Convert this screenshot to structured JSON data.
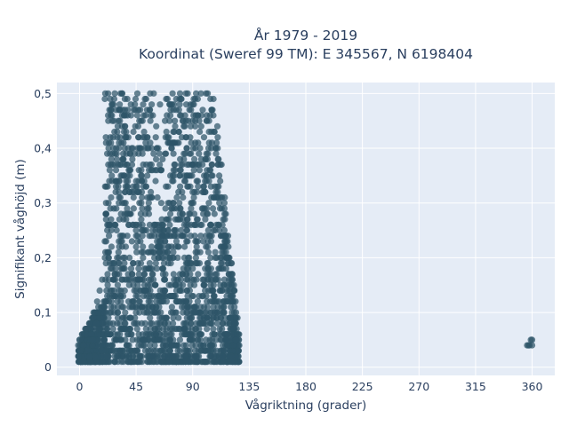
{
  "chart_data": {
    "type": "scatter",
    "title_line1": "År 1979 - 2019",
    "title_line2": "Koordinat (Sweref 99 TM): E 345567, N 6198404",
    "xlabel": "Vågriktning (grader)",
    "ylabel": "Signifikant våghöjd (m)",
    "xlim": [
      -18,
      378
    ],
    "ylim": [
      -0.015,
      0.52
    ],
    "x_ticks": [
      0,
      45,
      90,
      135,
      180,
      225,
      270,
      315,
      360
    ],
    "x_tick_labels": [
      "0",
      "45",
      "90",
      "135",
      "180",
      "225",
      "270",
      "315",
      "360"
    ],
    "y_ticks": [
      0,
      0.1,
      0.2,
      0.3,
      0.4,
      0.5
    ],
    "y_tick_labels": [
      "0",
      "0,1",
      "0,2",
      "0,3",
      "0,4",
      "0,5"
    ],
    "grid": true,
    "legend": "none",
    "marker_color": "#2e5468",
    "background_color": "#e5ecf6",
    "series": [
      {
        "values": [
          [
            -1,
            0.04
          ],
          [
            0,
            0.05
          ],
          [
            1,
            0.03
          ],
          [
            2,
            0.06
          ],
          [
            3,
            0.04
          ],
          [
            5,
            0.07
          ],
          [
            6,
            0.03
          ],
          [
            8,
            0.08
          ],
          [
            10,
            0.05
          ],
          [
            11,
            0.09
          ],
          [
            12,
            0.1
          ],
          [
            14,
            0.12
          ],
          [
            15,
            0.07
          ],
          [
            16,
            0.14
          ],
          [
            18,
            0.16
          ],
          [
            20,
            0.11
          ],
          [
            21,
            0.19
          ],
          [
            22,
            0.25
          ],
          [
            23,
            0.3
          ],
          [
            24,
            0.36
          ],
          [
            25,
            0.41
          ],
          [
            26,
            0.45
          ],
          [
            27,
            0.48
          ],
          [
            28,
            0.5
          ],
          [
            29,
            0.33
          ],
          [
            30,
            0.43
          ],
          [
            31,
            0.21
          ],
          [
            32,
            0.47
          ],
          [
            33,
            0.28
          ],
          [
            34,
            0.5
          ],
          [
            35,
            0.38
          ],
          [
            36,
            0.2
          ],
          [
            37,
            0.42
          ],
          [
            38,
            0.49
          ],
          [
            39,
            0.26
          ],
          [
            40,
            0.35
          ],
          [
            41,
            0.46
          ],
          [
            42,
            0.17
          ],
          [
            43,
            0.31
          ],
          [
            44,
            0.48
          ],
          [
            45,
            0.22
          ],
          [
            46,
            0.5
          ],
          [
            47,
            0.39
          ],
          [
            48,
            0.14
          ],
          [
            49,
            0.45
          ],
          [
            50,
            0.24
          ],
          [
            51,
            0.33
          ],
          [
            52,
            0.49
          ],
          [
            53,
            0.18
          ],
          [
            54,
            0.42
          ],
          [
            55,
            0.29
          ],
          [
            56,
            0.47
          ],
          [
            57,
            0.1
          ],
          [
            58,
            0.36
          ],
          [
            59,
            0.5
          ],
          [
            60,
            0.26
          ],
          [
            61,
            0.44
          ],
          [
            62,
            0.31
          ],
          [
            63,
            0.21
          ],
          [
            64,
            0.48
          ],
          [
            65,
            0.3
          ],
          [
            66,
            0.38
          ],
          [
            67,
            0.25
          ],
          [
            68,
            0.45
          ],
          [
            69,
            0.27
          ],
          [
            70,
            0.49
          ],
          [
            71,
            0.22
          ],
          [
            72,
            0.41
          ],
          [
            73,
            0.29
          ],
          [
            74,
            0.5
          ],
          [
            75,
            0.24
          ],
          [
            76,
            0.36
          ],
          [
            77,
            0.47
          ],
          [
            78,
            0.2
          ],
          [
            79,
            0.43
          ],
          [
            80,
            0.33
          ],
          [
            81,
            0.49
          ],
          [
            82,
            0.28
          ],
          [
            83,
            0.38
          ],
          [
            84,
            0.46
          ],
          [
            85,
            0.23
          ],
          [
            86,
            0.5
          ],
          [
            87,
            0.35
          ],
          [
            88,
            0.42
          ],
          [
            89,
            0.19
          ],
          [
            90,
            0.48
          ],
          [
            91,
            0.31
          ],
          [
            92,
            0.44
          ],
          [
            93,
            0.26
          ],
          [
            94,
            0.49
          ],
          [
            95,
            0.37
          ],
          [
            96,
            0.21
          ],
          [
            97,
            0.46
          ],
          [
            98,
            0.32
          ],
          [
            99,
            0.42
          ],
          [
            100,
            0.27
          ],
          [
            101,
            0.39
          ],
          [
            102,
            0.18
          ],
          [
            103,
            0.45
          ],
          [
            104,
            0.24
          ],
          [
            105,
            0.35
          ],
          [
            106,
            0.14
          ],
          [
            107,
            0.43
          ],
          [
            108,
            0.2
          ],
          [
            109,
            0.31
          ],
          [
            110,
            0.11
          ],
          [
            111,
            0.26
          ],
          [
            112,
            0.15
          ],
          [
            114,
            0.08
          ],
          [
            116,
            0.12
          ],
          [
            118,
            0.06
          ],
          [
            120,
            0.09
          ],
          [
            122,
            0.04
          ],
          [
            124,
            0.05
          ],
          [
            126,
            0.03
          ],
          [
            127,
            0.04
          ],
          [
            356,
            0.04
          ],
          [
            357,
            0.04
          ],
          [
            358,
            0.04
          ],
          [
            359,
            0.05
          ],
          [
            360,
            0.04
          ],
          [
            360,
            0.05
          ]
        ]
      }
    ]
  }
}
